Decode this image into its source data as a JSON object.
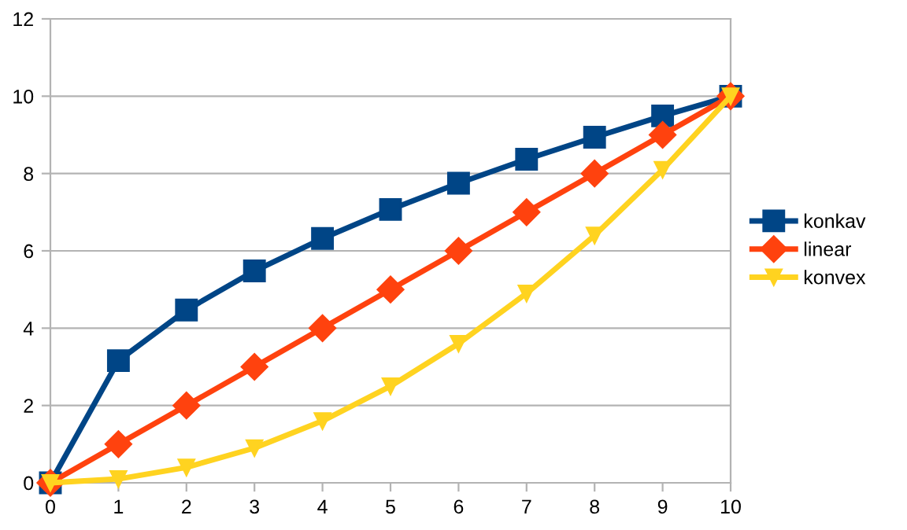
{
  "chart_data": {
    "type": "line",
    "x": [
      0,
      1,
      2,
      3,
      4,
      5,
      6,
      7,
      8,
      9,
      10
    ],
    "series": [
      {
        "name": "konkav",
        "color": "#004586",
        "marker": "square",
        "values": [
          0,
          3.16,
          4.47,
          5.48,
          6.32,
          7.07,
          7.75,
          8.37,
          8.94,
          9.49,
          10
        ]
      },
      {
        "name": "linear",
        "color": "#ff420e",
        "marker": "diamond",
        "values": [
          0,
          1,
          2,
          3,
          4,
          5,
          6,
          7,
          8,
          9,
          10
        ]
      },
      {
        "name": "konvex",
        "color": "#ffd320",
        "marker": "triangle",
        "values": [
          0,
          0.1,
          0.4,
          0.9,
          1.6,
          2.5,
          3.6,
          4.9,
          6.4,
          8.1,
          10
        ]
      }
    ],
    "xlim": [
      0,
      10
    ],
    "xticks": [
      0,
      1,
      2,
      3,
      4,
      5,
      6,
      7,
      8,
      9,
      10
    ],
    "ylim": [
      0,
      12
    ],
    "yticks": [
      0,
      2,
      4,
      6,
      8,
      10,
      12
    ],
    "grid": "y",
    "legend": "right",
    "line_style": "solid"
  }
}
